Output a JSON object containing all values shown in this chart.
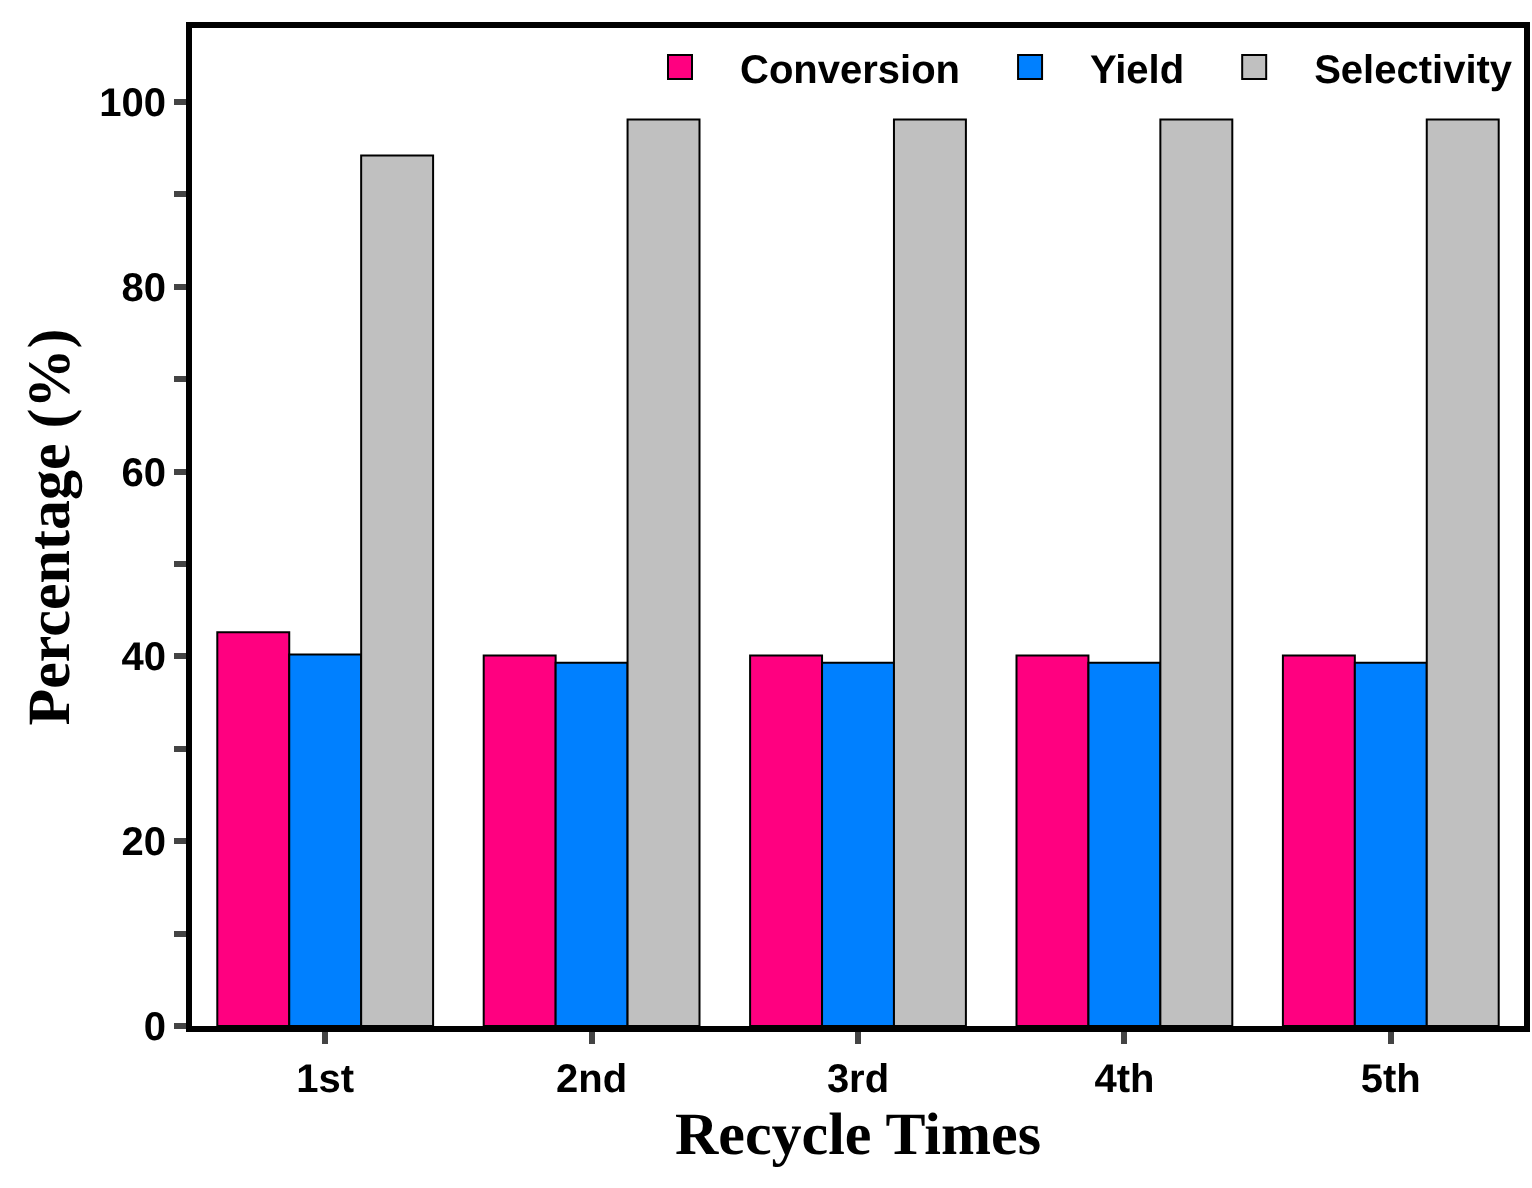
{
  "chart_data": {
    "type": "bar",
    "xlabel": "Recycle Times",
    "ylabel": "Percentage (%)",
    "categories": [
      "1st",
      "2nd",
      "3rd",
      "4th",
      "5th"
    ],
    "series": [
      {
        "name": "Conversion",
        "color": "#ff0080",
        "values": [
          42.6,
          40.1,
          40.1,
          40.1,
          40.1
        ]
      },
      {
        "name": "Yield",
        "color": "#0080ff",
        "values": [
          40.2,
          39.3,
          39.3,
          39.3,
          39.3
        ]
      },
      {
        "name": "Selectivity",
        "color": "#c0c0c0",
        "values": [
          94.2,
          98.1,
          98.1,
          98.1,
          98.1
        ]
      }
    ],
    "ylim": [
      0,
      108
    ],
    "yticks": [
      0,
      {
        "value": 10,
        "label": null
      },
      20,
      {
        "value": 30,
        "label": null
      },
      40,
      {
        "value": 50,
        "label": null
      },
      60,
      {
        "value": 70,
        "label": null
      },
      80,
      {
        "value": 90,
        "label": null
      },
      100
    ],
    "grid": false,
    "legend": "top right"
  }
}
